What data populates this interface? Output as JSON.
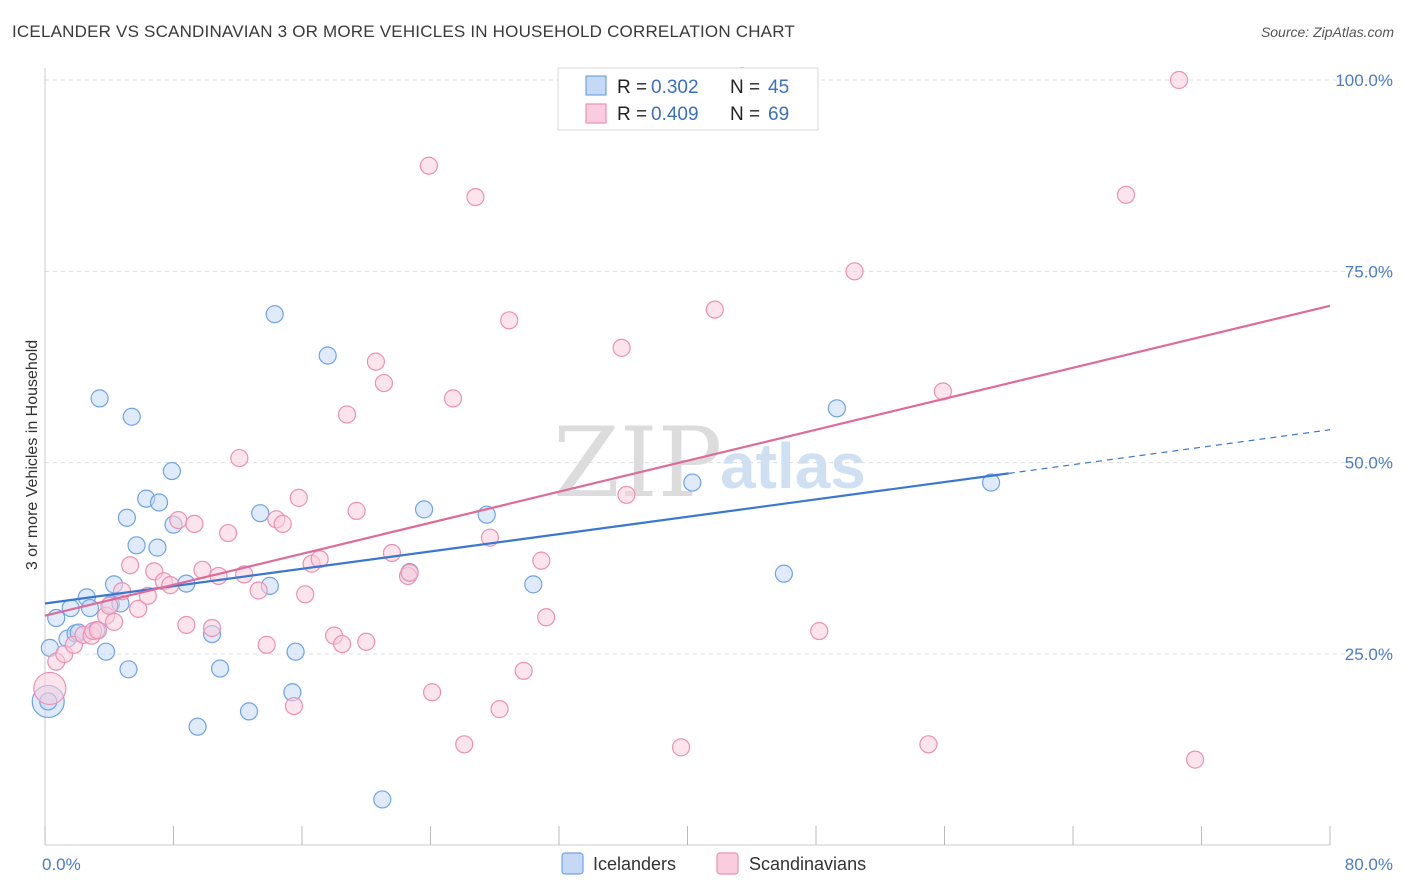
{
  "chart_data": {
    "type": "scatter",
    "title": "ICELANDER VS SCANDINAVIAN 3 OR MORE VEHICLES IN HOUSEHOLD CORRELATION CHART",
    "source": "Source: ZipAtlas.com",
    "xlabel": "",
    "ylabel": "3 or more Vehicles in Household",
    "xlim": [
      0,
      80
    ],
    "ylim": [
      0,
      105
    ],
    "x_tick_labels": [
      {
        "value": 0,
        "label": "0.0%"
      },
      {
        "value": 80,
        "label": "80.0%"
      }
    ],
    "x_minor_ticks": [
      0,
      8,
      16,
      24,
      32,
      40,
      48,
      56,
      64,
      72,
      80
    ],
    "y_tick_labels": [
      {
        "value": 25,
        "label": "25.0%"
      },
      {
        "value": 50,
        "label": "50.0%"
      },
      {
        "value": 75,
        "label": "75.0%"
      },
      {
        "value": 100,
        "label": "100.0%"
      }
    ],
    "watermark": {
      "zip": "ZIP",
      "atlas": "atlas"
    },
    "legend": {
      "rows": [
        {
          "r_label": "R = ",
          "r_value": "0.302",
          "n_label": "N = ",
          "n_value": "45"
        },
        {
          "r_label": "R = ",
          "r_value": "0.409",
          "n_label": "N = ",
          "n_value": "69"
        }
      ]
    },
    "series": [
      {
        "name": "Icelanders",
        "color": "#6fa3e6",
        "fill": "#c5d9f5",
        "line_color": "#3a78d0",
        "trend": {
          "x0": 0,
          "y0": 31.6,
          "x1": 60,
          "y1": 48.6,
          "dash_x1": 80,
          "dash_y1": 54.3
        },
        "points": [
          [
            0.2,
            18.8
          ],
          [
            0.3,
            25.8
          ],
          [
            0.7,
            29.7
          ],
          [
            1.4,
            27.0
          ],
          [
            1.6,
            31.0
          ],
          [
            1.9,
            27.7
          ],
          [
            2.1,
            27.8
          ],
          [
            2.6,
            32.4
          ],
          [
            2.8,
            31.0
          ],
          [
            3.2,
            28.1
          ],
          [
            3.4,
            58.4
          ],
          [
            3.8,
            25.3
          ],
          [
            4.1,
            31.5
          ],
          [
            4.3,
            34.1
          ],
          [
            4.7,
            31.6
          ],
          [
            5.1,
            42.8
          ],
          [
            5.2,
            23.0
          ],
          [
            5.4,
            56.0
          ],
          [
            5.7,
            39.2
          ],
          [
            6.3,
            45.3
          ],
          [
            7.0,
            38.9
          ],
          [
            7.1,
            44.8
          ],
          [
            7.9,
            48.9
          ],
          [
            8.0,
            41.9
          ],
          [
            8.8,
            34.2
          ],
          [
            9.5,
            15.5
          ],
          [
            10.4,
            27.6
          ],
          [
            10.9,
            23.1
          ],
          [
            12.7,
            17.5
          ],
          [
            13.4,
            43.4
          ],
          [
            14.0,
            33.9
          ],
          [
            14.3,
            69.4
          ],
          [
            15.4,
            20.0
          ],
          [
            15.6,
            25.3
          ],
          [
            17.6,
            64.0
          ],
          [
            21.0,
            6.0
          ],
          [
            22.7,
            35.7
          ],
          [
            23.6,
            43.9
          ],
          [
            27.5,
            43.2
          ],
          [
            30.4,
            34.1
          ],
          [
            40.3,
            47.4
          ],
          [
            46.0,
            35.5
          ],
          [
            49.3,
            57.1
          ],
          [
            58.9,
            47.4
          ],
          [
            0.2,
            18.8
          ]
        ]
      },
      {
        "name": "Scandinavians",
        "color": "#ee8fb2",
        "fill": "#f9cddd",
        "line_color": "#de6b98",
        "trend": {
          "x0": 0,
          "y0": 30.0,
          "x1": 80,
          "y1": 70.5
        },
        "points": [
          [
            0.3,
            20.5
          ],
          [
            0.7,
            24.0
          ],
          [
            1.2,
            25.0
          ],
          [
            1.8,
            26.2
          ],
          [
            2.4,
            27.5
          ],
          [
            2.9,
            27.4
          ],
          [
            3.0,
            28.0
          ],
          [
            3.3,
            28.1
          ],
          [
            3.8,
            30.0
          ],
          [
            4.0,
            31.3
          ],
          [
            4.3,
            29.2
          ],
          [
            4.8,
            33.2
          ],
          [
            5.3,
            36.6
          ],
          [
            5.8,
            30.9
          ],
          [
            6.4,
            32.6
          ],
          [
            6.8,
            35.8
          ],
          [
            7.4,
            34.5
          ],
          [
            7.8,
            34.0
          ],
          [
            8.3,
            42.5
          ],
          [
            8.8,
            28.8
          ],
          [
            9.3,
            42.0
          ],
          [
            9.8,
            36.0
          ],
          [
            10.4,
            28.4
          ],
          [
            10.8,
            35.2
          ],
          [
            11.4,
            40.8
          ],
          [
            12.1,
            50.6
          ],
          [
            12.4,
            35.4
          ],
          [
            13.3,
            33.3
          ],
          [
            13.8,
            26.2
          ],
          [
            14.4,
            42.6
          ],
          [
            14.8,
            42.0
          ],
          [
            15.5,
            18.2
          ],
          [
            15.8,
            45.4
          ],
          [
            16.2,
            32.8
          ],
          [
            16.6,
            36.8
          ],
          [
            17.1,
            37.4
          ],
          [
            18.0,
            27.4
          ],
          [
            18.5,
            26.3
          ],
          [
            18.8,
            56.3
          ],
          [
            19.4,
            43.7
          ],
          [
            20.0,
            26.6
          ],
          [
            20.6,
            63.2
          ],
          [
            21.1,
            60.4
          ],
          [
            21.6,
            38.2
          ],
          [
            22.6,
            35.2
          ],
          [
            23.9,
            88.8
          ],
          [
            24.1,
            20.0
          ],
          [
            25.4,
            58.4
          ],
          [
            26.1,
            13.2
          ],
          [
            26.8,
            84.7
          ],
          [
            27.7,
            40.2
          ],
          [
            28.3,
            17.8
          ],
          [
            28.9,
            68.6
          ],
          [
            29.8,
            22.8
          ],
          [
            31.2,
            29.8
          ],
          [
            35.9,
            65.0
          ],
          [
            36.2,
            45.8
          ],
          [
            39.6,
            12.8
          ],
          [
            41.7,
            70.0
          ],
          [
            43.4,
            100.5
          ],
          [
            48.2,
            28.0
          ],
          [
            50.4,
            75.0
          ],
          [
            55.0,
            13.2
          ],
          [
            55.9,
            59.3
          ],
          [
            67.3,
            85.0
          ],
          [
            70.6,
            100.0
          ],
          [
            71.6,
            11.2
          ],
          [
            30.9,
            37.2
          ],
          [
            22.7,
            35.6
          ]
        ]
      }
    ]
  }
}
